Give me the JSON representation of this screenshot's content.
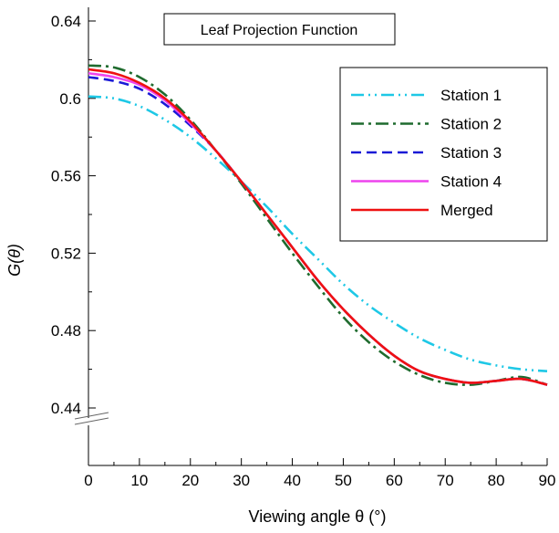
{
  "chart_data": {
    "type": "line",
    "title": "Leaf Projection Function",
    "xlabel": "Viewing angle θ (°)",
    "ylabel": "G(θ)",
    "xlim": [
      0,
      90
    ],
    "ylim": [
      0.44,
      0.64
    ],
    "xticks": [
      0,
      10,
      20,
      30,
      40,
      50,
      60,
      70,
      80,
      90
    ],
    "yticks": [
      0.44,
      0.48,
      0.52,
      0.56,
      0.6,
      0.64
    ],
    "ytick_labels": [
      "0.44",
      "0.48",
      "0.52",
      "0.56",
      "0.6",
      "0.64"
    ],
    "y_axis_break": true,
    "grid": false,
    "legend_position": "top-right",
    "x": [
      0,
      5,
      10,
      15,
      20,
      25,
      30,
      35,
      40,
      45,
      50,
      55,
      60,
      65,
      70,
      75,
      80,
      85,
      90
    ],
    "series": [
      {
        "name": "Station 1",
        "color": "#1ec8e6",
        "dash": "dashdotdot",
        "values": [
          0.601,
          0.6,
          0.596,
          0.589,
          0.58,
          0.569,
          0.557,
          0.544,
          0.53,
          0.517,
          0.504,
          0.493,
          0.484,
          0.476,
          0.47,
          0.465,
          0.462,
          0.46,
          0.459
        ]
      },
      {
        "name": "Station 2",
        "color": "#1f6b2e",
        "dash": "dashdot",
        "values": [
          0.617,
          0.616,
          0.611,
          0.602,
          0.589,
          0.573,
          0.556,
          0.538,
          0.52,
          0.503,
          0.487,
          0.474,
          0.464,
          0.457,
          0.453,
          0.452,
          0.454,
          0.456,
          0.452
        ]
      },
      {
        "name": "Station 3",
        "color": "#1a1ad6",
        "dash": "dashed",
        "values": [
          0.611,
          0.609,
          0.605,
          0.597,
          0.586,
          0.573,
          0.557,
          0.54,
          0.523,
          0.506,
          0.491,
          0.478,
          0.467,
          0.459,
          0.455,
          0.453,
          0.454,
          0.455,
          0.452
        ]
      },
      {
        "name": "Station 4",
        "color": "#ee44ee",
        "dash": "solid",
        "values": [
          0.613,
          0.611,
          0.607,
          0.599,
          0.587,
          0.573,
          0.557,
          0.54,
          0.523,
          0.506,
          0.491,
          0.478,
          0.467,
          0.459,
          0.455,
          0.453,
          0.454,
          0.455,
          0.452
        ]
      },
      {
        "name": "Merged",
        "color": "#ee1111",
        "dash": "solid",
        "values": [
          0.615,
          0.613,
          0.608,
          0.6,
          0.588,
          0.573,
          0.557,
          0.54,
          0.523,
          0.506,
          0.491,
          0.478,
          0.467,
          0.459,
          0.455,
          0.453,
          0.454,
          0.455,
          0.452
        ]
      }
    ]
  }
}
